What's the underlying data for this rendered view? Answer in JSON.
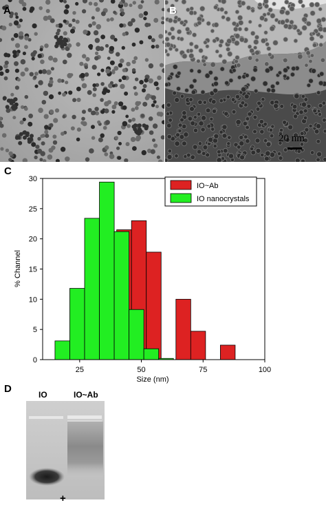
{
  "panels": {
    "a": "A",
    "b": "B",
    "c": "C",
    "d": "D"
  },
  "tem_b": {
    "scale_label": "20 nm"
  },
  "gel": {
    "lane_labels": [
      "IO",
      "IO~Ab"
    ],
    "electrode": "+"
  },
  "chart_data": {
    "type": "bar",
    "ylabel": "% Channel",
    "xlabel": "Size (nm)",
    "xlim": [
      10,
      100
    ],
    "ylim": [
      0,
      30
    ],
    "xticks": [
      25,
      50,
      75,
      100
    ],
    "yticks": [
      0,
      5,
      10,
      15,
      20,
      25,
      30
    ],
    "legend_position": "top-right",
    "series": [
      {
        "name": "IO~Ab",
        "color": "#dd2222",
        "bins": [
          {
            "x0": 40,
            "x1": 46,
            "value": 21.5
          },
          {
            "x0": 46,
            "x1": 52,
            "value": 23
          },
          {
            "x0": 52,
            "x1": 58,
            "value": 17.8
          },
          {
            "x0": 64,
            "x1": 70,
            "value": 10
          },
          {
            "x0": 70,
            "x1": 76,
            "value": 4.7
          },
          {
            "x0": 82,
            "x1": 88,
            "value": 2.4
          }
        ]
      },
      {
        "name": "IO nanocrystals",
        "color": "#22ee22",
        "bins": [
          {
            "x0": 15,
            "x1": 21,
            "value": 3.1
          },
          {
            "x0": 21,
            "x1": 27,
            "value": 11.8
          },
          {
            "x0": 27,
            "x1": 33,
            "value": 23.4
          },
          {
            "x0": 33,
            "x1": 39,
            "value": 29.4
          },
          {
            "x0": 39,
            "x1": 45,
            "value": 21.2
          },
          {
            "x0": 45,
            "x1": 51,
            "value": 8.3
          },
          {
            "x0": 51,
            "x1": 57,
            "value": 1.8
          },
          {
            "x0": 57,
            "x1": 63,
            "value": 0.2
          }
        ]
      }
    ]
  }
}
